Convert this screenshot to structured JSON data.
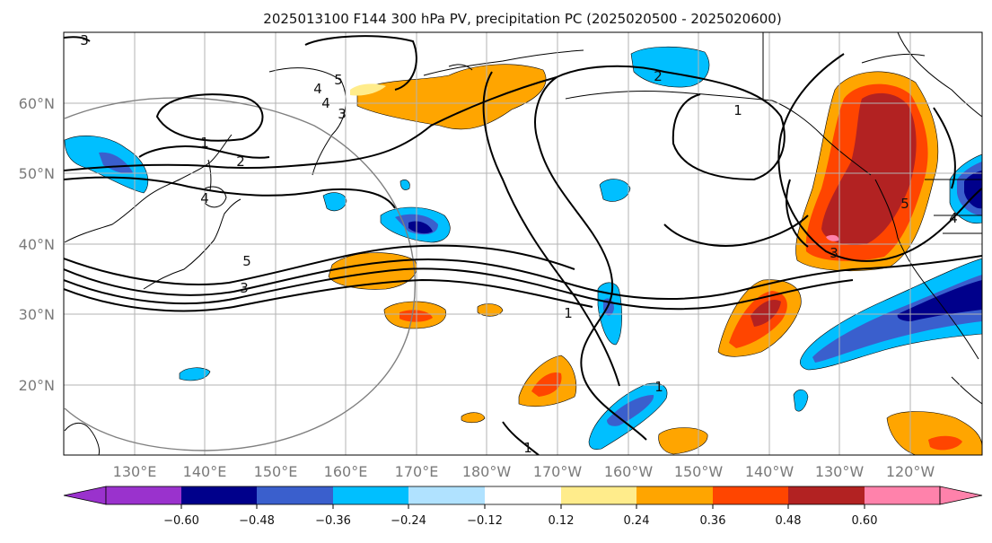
{
  "title": "2025013100 F144 300 hPa PV, precipitation PC (2025020500 - 2025020600)",
  "map": {
    "lon_labels": [
      "130°E",
      "140°E",
      "150°E",
      "160°E",
      "170°E",
      "180°W",
      "170°W",
      "160°W",
      "150°W",
      "140°W",
      "130°W",
      "120°W"
    ],
    "lat_labels": [
      "60°N",
      "50°N",
      "40°N",
      "30°N",
      "20°N"
    ],
    "contour_labels": [
      "3",
      "4",
      "5",
      "4",
      "3",
      "1",
      "2",
      "4",
      "2",
      "1",
      "5",
      "3",
      "1",
      "1",
      "5",
      "4",
      "3",
      "1"
    ],
    "colors": {
      "land_outline": "#000000",
      "grid": "#b3b3b3",
      "contour": "#000000",
      "great_circle": "#808080"
    }
  },
  "colorbar": {
    "tick_labels": [
      "−0.60",
      "−0.48",
      "−0.36",
      "−0.24",
      "−0.12",
      "0.12",
      "0.24",
      "0.36",
      "0.48",
      "0.60"
    ],
    "colors": [
      "#9a32cd",
      "#00008b",
      "#3a5fcd",
      "#00bfff",
      "#b0e2ff",
      "#ffffff",
      "#ffec8b",
      "#ffa500",
      "#ff4500",
      "#b22222",
      "#ff82ab"
    ]
  }
}
